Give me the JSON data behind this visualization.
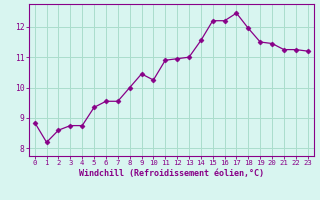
{
  "x": [
    0,
    1,
    2,
    3,
    4,
    5,
    6,
    7,
    8,
    9,
    10,
    11,
    12,
    13,
    14,
    15,
    16,
    17,
    18,
    19,
    20,
    21,
    22,
    23
  ],
  "y": [
    8.85,
    8.2,
    8.6,
    8.75,
    8.75,
    9.35,
    9.55,
    9.55,
    10.0,
    10.45,
    10.25,
    10.9,
    10.95,
    11.0,
    11.55,
    12.2,
    12.2,
    12.45,
    11.95,
    11.5,
    11.45,
    11.25,
    11.25,
    11.2
  ],
  "line_color": "#880088",
  "marker": "D",
  "marker_size": 2.5,
  "bg_color": "#d8f5f0",
  "grid_color": "#aaddcc",
  "axis_color": "#880088",
  "xlabel": "Windchill (Refroidissement éolien,°C)",
  "xlim": [
    -0.5,
    23.5
  ],
  "ylim": [
    7.75,
    12.75
  ],
  "yticks": [
    8,
    9,
    10,
    11,
    12
  ],
  "xticks": [
    0,
    1,
    2,
    3,
    4,
    5,
    6,
    7,
    8,
    9,
    10,
    11,
    12,
    13,
    14,
    15,
    16,
    17,
    18,
    19,
    20,
    21,
    22,
    23
  ]
}
